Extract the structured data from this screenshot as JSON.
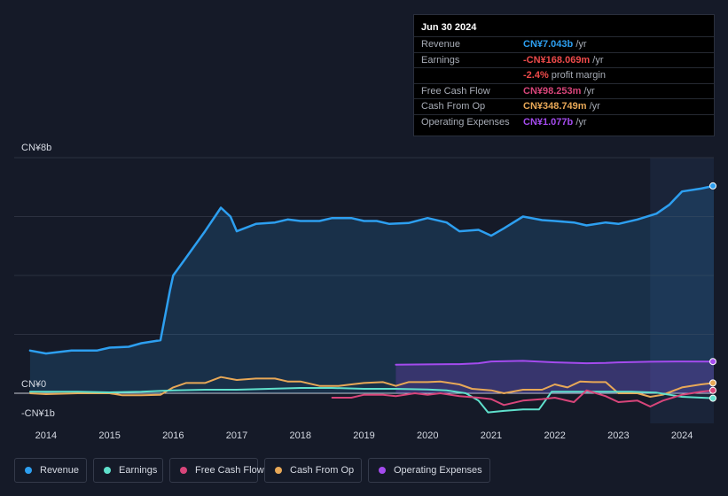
{
  "colors": {
    "revenue": "#2d9ff0",
    "earnings": "#5fe0cc",
    "fcf": "#d8457a",
    "cfo": "#e8a857",
    "opex": "#a44bee",
    "grid": "#2c3140",
    "axis_text": "#d6dae3"
  },
  "tooltip": {
    "date": "Jun 30 2024",
    "rows": [
      {
        "label": "Revenue",
        "value": "CN¥7.043b",
        "unit": " /yr",
        "color": "#2d9ff0"
      },
      {
        "label": "Earnings",
        "value": "-CN¥168.069m",
        "unit": " /yr",
        "color": "#ee4a4a"
      },
      {
        "label": "",
        "value": "-2.4%",
        "unit": " profit margin",
        "color": "#ee4a4a"
      },
      {
        "label": "Free Cash Flow",
        "value": "CN¥98.253m",
        "unit": " /yr",
        "color": "#d8457a"
      },
      {
        "label": "Cash From Op",
        "value": "CN¥348.749m",
        "unit": " /yr",
        "color": "#e8a857"
      },
      {
        "label": "Operating Expenses",
        "value": "CN¥1.077b",
        "unit": " /yr",
        "color": "#a44bee"
      }
    ]
  },
  "legend": [
    {
      "key": "revenue",
      "label": "Revenue"
    },
    {
      "key": "earnings",
      "label": "Earnings"
    },
    {
      "key": "fcf",
      "label": "Free Cash Flow"
    },
    {
      "key": "cfo",
      "label": "Cash From Op"
    },
    {
      "key": "opex",
      "label": "Operating Expenses"
    }
  ],
  "chart_data": {
    "type": "line",
    "title": "",
    "unit": "CN¥ billions",
    "y_labels": [
      {
        "label": "CN¥8b",
        "value": 8
      },
      {
        "label": "CN¥0",
        "value": 0
      },
      {
        "label": "-CN¥1b",
        "value": -1
      }
    ],
    "ylim": [
      -1,
      8
    ],
    "xlim": [
      2013.5,
      2024.5
    ],
    "x_ticks": [
      2014,
      2015,
      2016,
      2017,
      2018,
      2019,
      2020,
      2021,
      2022,
      2023,
      2024
    ],
    "highlight_start": 2023.5,
    "series": [
      {
        "key": "revenue",
        "name": "Revenue",
        "fill": true,
        "points": [
          [
            2013.75,
            1.45
          ],
          [
            2014.0,
            1.35
          ],
          [
            2014.4,
            1.45
          ],
          [
            2014.8,
            1.45
          ],
          [
            2015.0,
            1.55
          ],
          [
            2015.3,
            1.58
          ],
          [
            2015.5,
            1.7
          ],
          [
            2015.8,
            1.8
          ],
          [
            2015.95,
            3.5
          ],
          [
            2016.0,
            4.0
          ],
          [
            2016.2,
            4.6
          ],
          [
            2016.5,
            5.5
          ],
          [
            2016.75,
            6.3
          ],
          [
            2016.9,
            6.0
          ],
          [
            2017.0,
            5.5
          ],
          [
            2017.3,
            5.75
          ],
          [
            2017.6,
            5.8
          ],
          [
            2017.8,
            5.9
          ],
          [
            2018.0,
            5.85
          ],
          [
            2018.3,
            5.85
          ],
          [
            2018.5,
            5.95
          ],
          [
            2018.8,
            5.95
          ],
          [
            2019.0,
            5.85
          ],
          [
            2019.2,
            5.85
          ],
          [
            2019.4,
            5.75
          ],
          [
            2019.7,
            5.78
          ],
          [
            2020.0,
            5.95
          ],
          [
            2020.3,
            5.8
          ],
          [
            2020.5,
            5.5
          ],
          [
            2020.8,
            5.55
          ],
          [
            2021.0,
            5.35
          ],
          [
            2021.2,
            5.6
          ],
          [
            2021.5,
            6.0
          ],
          [
            2021.8,
            5.88
          ],
          [
            2022.0,
            5.85
          ],
          [
            2022.3,
            5.8
          ],
          [
            2022.5,
            5.7
          ],
          [
            2022.8,
            5.8
          ],
          [
            2023.0,
            5.75
          ],
          [
            2023.3,
            5.9
          ],
          [
            2023.6,
            6.1
          ],
          [
            2023.8,
            6.4
          ],
          [
            2024.0,
            6.85
          ],
          [
            2024.3,
            6.95
          ],
          [
            2024.5,
            7.04
          ]
        ]
      },
      {
        "key": "opex",
        "name": "Operating Expenses",
        "fill": true,
        "points": [
          [
            2019.5,
            0.97
          ],
          [
            2020.0,
            0.98
          ],
          [
            2020.5,
            0.99
          ],
          [
            2020.8,
            1.02
          ],
          [
            2021.0,
            1.08
          ],
          [
            2021.5,
            1.1
          ],
          [
            2022.0,
            1.05
          ],
          [
            2022.5,
            1.02
          ],
          [
            2022.8,
            1.03
          ],
          [
            2023.0,
            1.05
          ],
          [
            2023.5,
            1.07
          ],
          [
            2024.0,
            1.08
          ],
          [
            2024.5,
            1.077
          ]
        ]
      },
      {
        "key": "cfo",
        "name": "Cash From Op",
        "fill": false,
        "points": [
          [
            2013.75,
            0.0
          ],
          [
            2014.0,
            -0.03
          ],
          [
            2014.5,
            0.0
          ],
          [
            2015.0,
            0.0
          ],
          [
            2015.2,
            -0.07
          ],
          [
            2015.5,
            -0.07
          ],
          [
            2015.8,
            -0.05
          ],
          [
            2016.0,
            0.2
          ],
          [
            2016.2,
            0.35
          ],
          [
            2016.5,
            0.35
          ],
          [
            2016.75,
            0.55
          ],
          [
            2017.0,
            0.45
          ],
          [
            2017.3,
            0.5
          ],
          [
            2017.6,
            0.5
          ],
          [
            2017.8,
            0.4
          ],
          [
            2018.0,
            0.4
          ],
          [
            2018.3,
            0.25
          ],
          [
            2018.6,
            0.25
          ],
          [
            2018.8,
            0.3
          ],
          [
            2019.0,
            0.35
          ],
          [
            2019.3,
            0.38
          ],
          [
            2019.5,
            0.25
          ],
          [
            2019.7,
            0.38
          ],
          [
            2020.0,
            0.38
          ],
          [
            2020.2,
            0.4
          ],
          [
            2020.5,
            0.3
          ],
          [
            2020.7,
            0.15
          ],
          [
            2021.0,
            0.1
          ],
          [
            2021.2,
            0.0
          ],
          [
            2021.5,
            0.12
          ],
          [
            2021.8,
            0.12
          ],
          [
            2022.0,
            0.3
          ],
          [
            2022.2,
            0.2
          ],
          [
            2022.4,
            0.4
          ],
          [
            2022.6,
            0.38
          ],
          [
            2022.8,
            0.38
          ],
          [
            2023.0,
            0.0
          ],
          [
            2023.3,
            0.0
          ],
          [
            2023.5,
            -0.12
          ],
          [
            2023.7,
            -0.05
          ],
          [
            2024.0,
            0.2
          ],
          [
            2024.3,
            0.3
          ],
          [
            2024.5,
            0.35
          ]
        ]
      },
      {
        "key": "earnings",
        "name": "Earnings",
        "fill": false,
        "points": [
          [
            2013.75,
            0.05
          ],
          [
            2014.5,
            0.05
          ],
          [
            2015.0,
            0.03
          ],
          [
            2015.5,
            0.05
          ],
          [
            2016.0,
            0.1
          ],
          [
            2016.5,
            0.12
          ],
          [
            2017.0,
            0.12
          ],
          [
            2017.5,
            0.15
          ],
          [
            2018.0,
            0.18
          ],
          [
            2018.5,
            0.18
          ],
          [
            2019.0,
            0.15
          ],
          [
            2019.5,
            0.15
          ],
          [
            2020.0,
            0.13
          ],
          [
            2020.3,
            0.1
          ],
          [
            2020.6,
            0.0
          ],
          [
            2020.8,
            -0.25
          ],
          [
            2020.95,
            -0.65
          ],
          [
            2021.2,
            -0.6
          ],
          [
            2021.5,
            -0.55
          ],
          [
            2021.75,
            -0.55
          ],
          [
            2021.95,
            0.05
          ],
          [
            2022.3,
            0.05
          ],
          [
            2022.8,
            0.05
          ],
          [
            2023.2,
            0.05
          ],
          [
            2023.6,
            0.02
          ],
          [
            2024.0,
            -0.12
          ],
          [
            2024.5,
            -0.168
          ]
        ]
      },
      {
        "key": "fcf",
        "name": "Free Cash Flow",
        "fill": false,
        "points": [
          [
            2018.5,
            -0.15
          ],
          [
            2018.8,
            -0.15
          ],
          [
            2019.0,
            -0.05
          ],
          [
            2019.3,
            -0.05
          ],
          [
            2019.5,
            -0.1
          ],
          [
            2019.8,
            0.0
          ],
          [
            2020.0,
            -0.05
          ],
          [
            2020.2,
            0.0
          ],
          [
            2020.5,
            -0.1
          ],
          [
            2020.8,
            -0.15
          ],
          [
            2021.0,
            -0.2
          ],
          [
            2021.2,
            -0.4
          ],
          [
            2021.5,
            -0.25
          ],
          [
            2021.8,
            -0.2
          ],
          [
            2022.0,
            -0.15
          ],
          [
            2022.3,
            -0.3
          ],
          [
            2022.5,
            0.1
          ],
          [
            2022.8,
            -0.1
          ],
          [
            2023.0,
            -0.3
          ],
          [
            2023.3,
            -0.25
          ],
          [
            2023.5,
            -0.45
          ],
          [
            2023.7,
            -0.25
          ],
          [
            2024.0,
            -0.05
          ],
          [
            2024.3,
            0.05
          ],
          [
            2024.5,
            0.098
          ]
        ]
      }
    ]
  }
}
